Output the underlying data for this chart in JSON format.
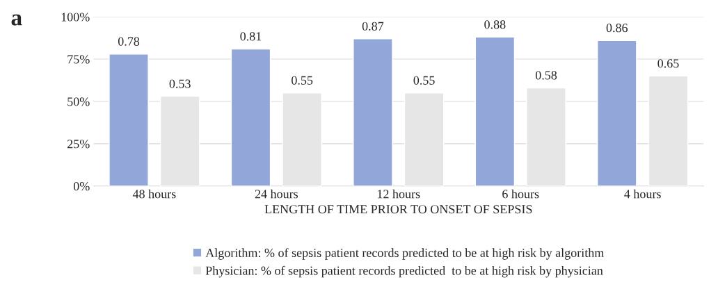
{
  "chart_data": {
    "type": "bar",
    "categories": [
      "48 hours",
      "24 hours",
      "12 hours",
      "6 hours",
      "4 hours"
    ],
    "xlabel": "LENGTH OF TIME PRIOR TO ONSET OF SEPSIS",
    "series": [
      {
        "name": "Algorithm: % of sepsis patient records predicted to be at high risk by algorithm",
        "color": "#93a6da",
        "values": [
          0.78,
          0.81,
          0.87,
          0.88,
          0.86
        ]
      },
      {
        "name": "Physician: % of sepsis patient records predicted  to be at high risk by physician",
        "color": "#e6e6e6",
        "values": [
          0.53,
          0.55,
          0.55,
          0.58,
          0.65
        ]
      }
    ],
    "ylim": [
      0,
      1
    ],
    "yticks": [
      {
        "value": 0,
        "label": "0%"
      },
      {
        "value": 0.25,
        "label": "25%"
      },
      {
        "value": 0.5,
        "label": "50%"
      },
      {
        "value": 0.75,
        "label": "75%"
      },
      {
        "value": 1,
        "label": "100%"
      }
    ],
    "grid": "y",
    "legend": "bottom",
    "data_labels": true,
    "annotations": [
      "a"
    ]
  }
}
